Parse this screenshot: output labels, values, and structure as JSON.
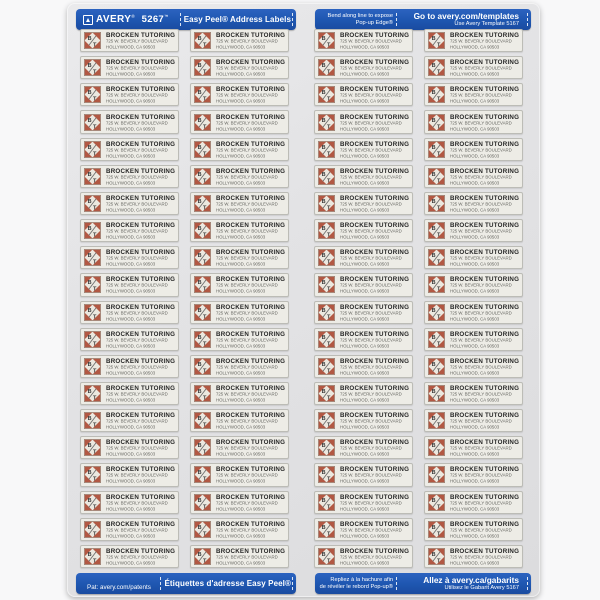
{
  "product": {
    "brand": "AVERY",
    "brand_mark": "®",
    "number": "5267",
    "number_mark": "™",
    "name_en": "Easy Peel® Address Labels",
    "name_fr": "Étiquettes d'adresse Easy Peel®"
  },
  "header_right": {
    "bend_line1": "Bend along line to expose",
    "bend_line2": "Pop-up Edge®",
    "template_line1": "Go to avery.com/templates",
    "template_line2": "Use Avery Template 5167"
  },
  "footer_left": {
    "patent": "Pat: avery.com/patents"
  },
  "footer_right": {
    "bend_fr_line1": "Repliez à la hachure afin",
    "bend_fr_line2": "de révéler le rebord Pop-up®",
    "template_fr_line1": "Allez à avery.ca/gabarits",
    "template_fr_line2": "Utilisez le Gabarit Avery 5167"
  },
  "label": {
    "logo_letter_top": "B",
    "logo_letter_bottom": "T",
    "name": "BROCKEN TUTORING",
    "address_line1": "725 W. BEVERLY BOULEVARD",
    "address_line2": "HOLLYWOOD, CA 90503"
  },
  "grid": {
    "columns": 4,
    "rows": 20,
    "total_labels": 80
  },
  "colors": {
    "avery_blue": "#1e56b0",
    "label_background": "#edece6",
    "logo_rust": "#b25843",
    "sheet_background": "#e3e3e5"
  }
}
